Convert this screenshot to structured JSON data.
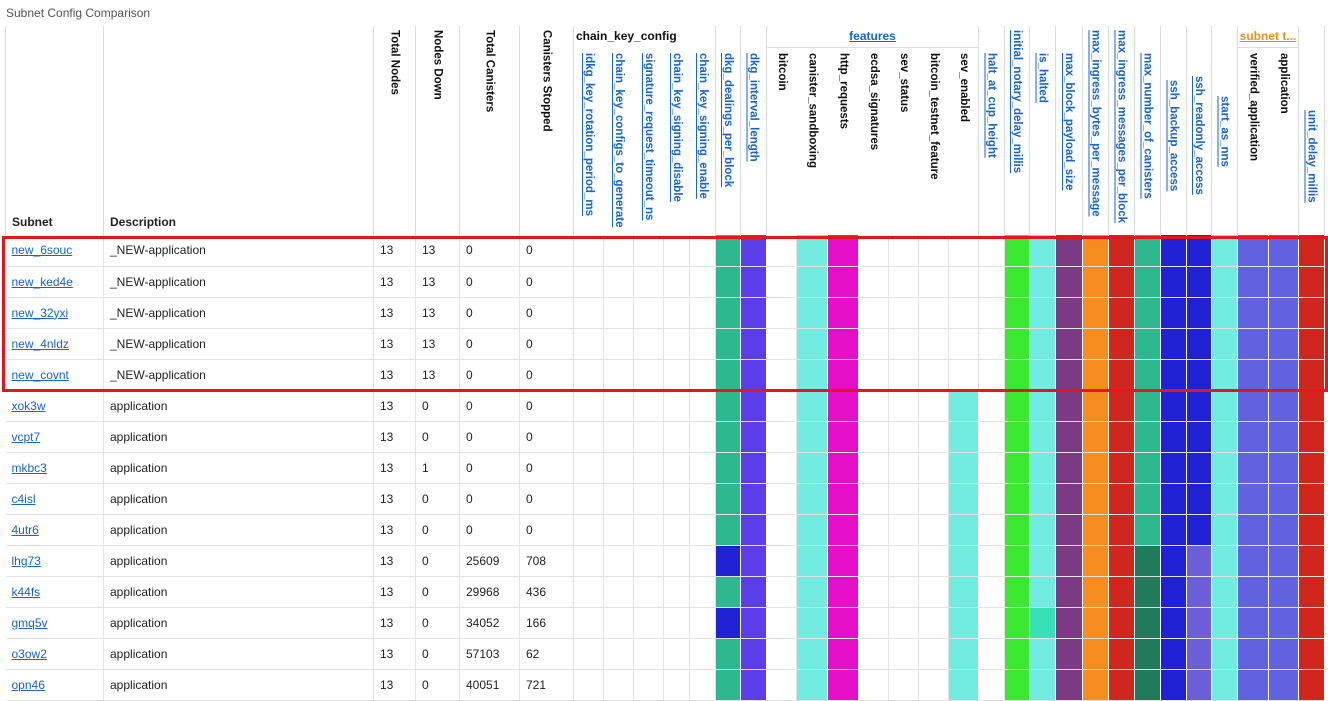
{
  "title": "Subnet Config Comparison",
  "headers": {
    "subnet": "Subnet",
    "description": "Description",
    "total_nodes": "Total Nodes",
    "nodes_down": "Nodes Down",
    "total_canisters": "Total Canisters",
    "canisters_stopped": "Canisters Stopped",
    "chain_key_group": "chain_key_config",
    "features_group": "features",
    "subnet_type_group": "subnet t...",
    "c_idkg": "idkg_key_rotation_period_ms",
    "c_ck_gen": "chain_key_configs_to_generate",
    "c_sig_timeout": "signature_request_timeout_ns",
    "c_ck_disable": "chain_key_signing_disable",
    "c_ck_enable": "chain_key_signing_enable",
    "c_dkg_deal": "dkg_dealings_per_block",
    "c_dkg_int": "dkg_interval_length",
    "c_bitcoin": "bitcoin",
    "c_canister_sandbox": "canister_sandboxing",
    "c_http": "http_requests",
    "c_ecdsa": "ecdsa_signatures",
    "c_sev_status": "sev_status",
    "c_btc_testnet": "bitcoin_testnet_feature",
    "c_sev_enabled": "sev_enabled",
    "c_halt_cup": "halt_at_cup_height",
    "c_notary": "initial_notary_delay_millis",
    "c_halted": "is_halted",
    "c_payload": "max_block_payload_size",
    "c_ingress_bytes": "max_ingress_bytes_per_message",
    "c_ingress_msgs": "max_ingress_messages_per_block",
    "c_num_canisters": "max_number_of_canisters",
    "c_ssh_backup": "ssh_backup_access",
    "c_ssh_readonly": "ssh_readonly_access",
    "c_start_nns": "start_as_nns",
    "c_verified_app": "verified_application",
    "c_application": "application",
    "c_unit_delay": "unit_delay_millis"
  },
  "colors": {
    "teal": "#2db88f",
    "indigo": "#5c3ee8",
    "cyan": "#72ebe0",
    "magenta": "#e50fc9",
    "green": "#3ae830",
    "purple": "#7b3a83",
    "orange": "#f78c1e",
    "red": "#d1261d",
    "darkgreen": "#217a5c",
    "blue": "#2121d6",
    "medblue": "#6262e0",
    "mint": "#38e0b8",
    "slate": "#6b5ed8",
    "white": "#ffffff",
    "highlight": "#e3161d"
  },
  "rows": [
    {
      "subnet": "new_6souc",
      "description": "_NEW-application",
      "total_nodes": "13",
      "nodes_down": "13",
      "total_canisters": "0",
      "canisters_stopped": "0",
      "colors": [
        "",
        "",
        "",
        "",
        "",
        "teal",
        "indigo",
        "",
        "cyan",
        "magenta",
        "",
        "",
        "",
        "",
        "",
        "green",
        "cyan",
        "purple",
        "orange",
        "red",
        "teal",
        "blue",
        "blue",
        "cyan",
        "medblue",
        "medblue",
        "red"
      ]
    },
    {
      "subnet": "new_ked4e",
      "description": "_NEW-application",
      "total_nodes": "13",
      "nodes_down": "13",
      "total_canisters": "0",
      "canisters_stopped": "0",
      "colors": [
        "",
        "",
        "",
        "",
        "",
        "teal",
        "indigo",
        "",
        "cyan",
        "magenta",
        "",
        "",
        "",
        "",
        "",
        "green",
        "cyan",
        "purple",
        "orange",
        "red",
        "teal",
        "blue",
        "blue",
        "cyan",
        "medblue",
        "medblue",
        "red"
      ]
    },
    {
      "subnet": "new_32yxi",
      "description": "_NEW-application",
      "total_nodes": "13",
      "nodes_down": "13",
      "total_canisters": "0",
      "canisters_stopped": "0",
      "colors": [
        "",
        "",
        "",
        "",
        "",
        "teal",
        "indigo",
        "",
        "cyan",
        "magenta",
        "",
        "",
        "",
        "",
        "",
        "green",
        "cyan",
        "purple",
        "orange",
        "red",
        "teal",
        "blue",
        "blue",
        "cyan",
        "medblue",
        "medblue",
        "red"
      ]
    },
    {
      "subnet": "new_4nldz",
      "description": "_NEW-application",
      "total_nodes": "13",
      "nodes_down": "13",
      "total_canisters": "0",
      "canisters_stopped": "0",
      "colors": [
        "",
        "",
        "",
        "",
        "",
        "teal",
        "indigo",
        "",
        "cyan",
        "magenta",
        "",
        "",
        "",
        "",
        "",
        "green",
        "cyan",
        "purple",
        "orange",
        "red",
        "teal",
        "blue",
        "blue",
        "cyan",
        "medblue",
        "medblue",
        "red"
      ]
    },
    {
      "subnet": "new_covnt",
      "description": "_NEW-application",
      "total_nodes": "13",
      "nodes_down": "13",
      "total_canisters": "0",
      "canisters_stopped": "0",
      "colors": [
        "",
        "",
        "",
        "",
        "",
        "teal",
        "indigo",
        "",
        "cyan",
        "magenta",
        "",
        "",
        "",
        "",
        "",
        "green",
        "cyan",
        "purple",
        "orange",
        "red",
        "teal",
        "blue",
        "blue",
        "cyan",
        "medblue",
        "medblue",
        "red"
      ]
    },
    {
      "subnet": "xok3w",
      "description": "application",
      "total_nodes": "13",
      "nodes_down": "0",
      "total_canisters": "0",
      "canisters_stopped": "0",
      "colors": [
        "",
        "",
        "",
        "",
        "",
        "teal",
        "indigo",
        "",
        "cyan",
        "magenta",
        "",
        "",
        "",
        "cyan",
        "",
        "green",
        "cyan",
        "purple",
        "orange",
        "red",
        "teal",
        "blue",
        "blue",
        "cyan",
        "medblue",
        "medblue",
        "red"
      ]
    },
    {
      "subnet": "vcpt7",
      "description": "application",
      "total_nodes": "13",
      "nodes_down": "0",
      "total_canisters": "0",
      "canisters_stopped": "0",
      "colors": [
        "",
        "",
        "",
        "",
        "",
        "teal",
        "indigo",
        "",
        "cyan",
        "magenta",
        "",
        "",
        "",
        "cyan",
        "",
        "green",
        "cyan",
        "purple",
        "orange",
        "red",
        "teal",
        "blue",
        "blue",
        "cyan",
        "medblue",
        "medblue",
        "red"
      ]
    },
    {
      "subnet": "mkbc3",
      "description": "application",
      "total_nodes": "13",
      "nodes_down": "1",
      "total_canisters": "0",
      "canisters_stopped": "0",
      "colors": [
        "",
        "",
        "",
        "",
        "",
        "teal",
        "indigo",
        "",
        "cyan",
        "magenta",
        "",
        "",
        "",
        "cyan",
        "",
        "green",
        "cyan",
        "purple",
        "orange",
        "red",
        "teal",
        "blue",
        "blue",
        "cyan",
        "medblue",
        "medblue",
        "red"
      ]
    },
    {
      "subnet": "c4isl",
      "description": "application",
      "total_nodes": "13",
      "nodes_down": "0",
      "total_canisters": "0",
      "canisters_stopped": "0",
      "colors": [
        "",
        "",
        "",
        "",
        "",
        "teal",
        "indigo",
        "",
        "cyan",
        "magenta",
        "",
        "",
        "",
        "cyan",
        "",
        "green",
        "cyan",
        "purple",
        "orange",
        "red",
        "teal",
        "blue",
        "blue",
        "cyan",
        "medblue",
        "medblue",
        "red"
      ]
    },
    {
      "subnet": "4utr6",
      "description": "application",
      "total_nodes": "13",
      "nodes_down": "0",
      "total_canisters": "0",
      "canisters_stopped": "0",
      "colors": [
        "",
        "",
        "",
        "",
        "",
        "teal",
        "indigo",
        "",
        "cyan",
        "magenta",
        "",
        "",
        "",
        "cyan",
        "",
        "green",
        "cyan",
        "purple",
        "orange",
        "red",
        "teal",
        "blue",
        "blue",
        "cyan",
        "medblue",
        "medblue",
        "red"
      ]
    },
    {
      "subnet": "lhg73",
      "description": "application",
      "total_nodes": "13",
      "nodes_down": "0",
      "total_canisters": "25609",
      "canisters_stopped": "708",
      "colors": [
        "",
        "",
        "",
        "",
        "",
        "blue",
        "indigo",
        "",
        "cyan",
        "magenta",
        "",
        "",
        "",
        "cyan",
        "",
        "green",
        "cyan",
        "purple",
        "orange",
        "red",
        "darkgreen",
        "blue",
        "slate",
        "cyan",
        "medblue",
        "medblue",
        "red"
      ]
    },
    {
      "subnet": "k44fs",
      "description": "application",
      "total_nodes": "13",
      "nodes_down": "0",
      "total_canisters": "29968",
      "canisters_stopped": "436",
      "colors": [
        "",
        "",
        "",
        "",
        "",
        "teal",
        "indigo",
        "",
        "cyan",
        "magenta",
        "",
        "",
        "",
        "cyan",
        "",
        "green",
        "cyan",
        "purple",
        "orange",
        "red",
        "darkgreen",
        "blue",
        "slate",
        "cyan",
        "medblue",
        "medblue",
        "red"
      ]
    },
    {
      "subnet": "gmq5v",
      "description": "application",
      "total_nodes": "13",
      "nodes_down": "0",
      "total_canisters": "34052",
      "canisters_stopped": "166",
      "colors": [
        "",
        "",
        "",
        "",
        "",
        "blue",
        "indigo",
        "",
        "cyan",
        "magenta",
        "",
        "",
        "",
        "cyan",
        "",
        "green",
        "mint",
        "purple",
        "orange",
        "red",
        "darkgreen",
        "blue",
        "slate",
        "cyan",
        "medblue",
        "medblue",
        "red"
      ]
    },
    {
      "subnet": "o3ow2",
      "description": "application",
      "total_nodes": "13",
      "nodes_down": "0",
      "total_canisters": "57103",
      "canisters_stopped": "62",
      "colors": [
        "",
        "",
        "",
        "",
        "",
        "teal",
        "indigo",
        "",
        "cyan",
        "magenta",
        "",
        "",
        "",
        "cyan",
        "",
        "green",
        "cyan",
        "purple",
        "orange",
        "red",
        "darkgreen",
        "blue",
        "slate",
        "cyan",
        "medblue",
        "medblue",
        "red"
      ]
    },
    {
      "subnet": "opn46",
      "description": "application",
      "total_nodes": "13",
      "nodes_down": "0",
      "total_canisters": "40051",
      "canisters_stopped": "721",
      "colors": [
        "",
        "",
        "",
        "",
        "",
        "teal",
        "indigo",
        "",
        "cyan",
        "magenta",
        "",
        "",
        "",
        "cyan",
        "",
        "green",
        "cyan",
        "purple",
        "orange",
        "red",
        "darkgreen",
        "blue",
        "slate",
        "cyan",
        "medblue",
        "medblue",
        "red"
      ]
    }
  ]
}
